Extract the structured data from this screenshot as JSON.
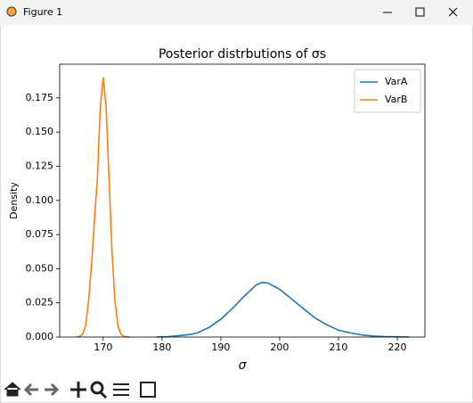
{
  "window_title": "Figure 1",
  "chart_data": {
    "type": "line",
    "title": "Posterior distrbutions of σs",
    "xlabel": "σ",
    "ylabel": "Density",
    "xlim": [
      162.6,
      224.7
    ],
    "xticks": [
      170,
      180,
      190,
      200,
      210,
      220
    ],
    "ylim": [
      0,
      0.1997
    ],
    "yticks": [
      {
        "value": 0,
        "label": "0.000"
      },
      {
        "value": 0.025,
        "label": "0.025"
      },
      {
        "value": 0.05,
        "label": "0.050"
      },
      {
        "value": 0.075,
        "label": "0.075"
      },
      {
        "value": 0.1,
        "label": "0.100"
      },
      {
        "value": 0.125,
        "label": "0.125"
      },
      {
        "value": 0.15,
        "label": "0.150"
      },
      {
        "value": 0.175,
        "label": "0.175"
      }
    ],
    "legend": "upper right",
    "series": [
      {
        "name": "VarA",
        "color": "#1f77b4",
        "x": [
          179,
          181,
          183,
          185,
          186,
          188,
          190,
          192,
          194,
          196,
          197,
          198,
          200,
          202,
          204,
          206,
          208,
          210,
          212,
          214,
          216,
          218,
          220,
          222
        ],
        "values": [
          0,
          0.0003,
          0.001,
          0.002,
          0.003,
          0.007,
          0.013,
          0.021,
          0.03,
          0.038,
          0.04,
          0.0395,
          0.035,
          0.028,
          0.021,
          0.014,
          0.009,
          0.005,
          0.003,
          0.0015,
          0.0007,
          0.0003,
          0.0001,
          0
        ]
      },
      {
        "name": "VarB",
        "color": "#ff7f0e",
        "x": [
          165.5,
          166,
          166.5,
          167,
          167.5,
          168,
          168.5,
          169,
          169.5,
          170,
          170.5,
          171,
          171.5,
          172,
          172.5,
          173,
          173.5,
          174,
          174.5
        ],
        "values": [
          0.0001,
          0.0004,
          0.0021,
          0.0083,
          0.026,
          0.0515,
          0.085,
          0.115,
          0.168,
          0.19,
          0.168,
          0.115,
          0.062,
          0.026,
          0.0083,
          0.0021,
          0.0004,
          0.0001,
          0
        ]
      }
    ]
  }
}
